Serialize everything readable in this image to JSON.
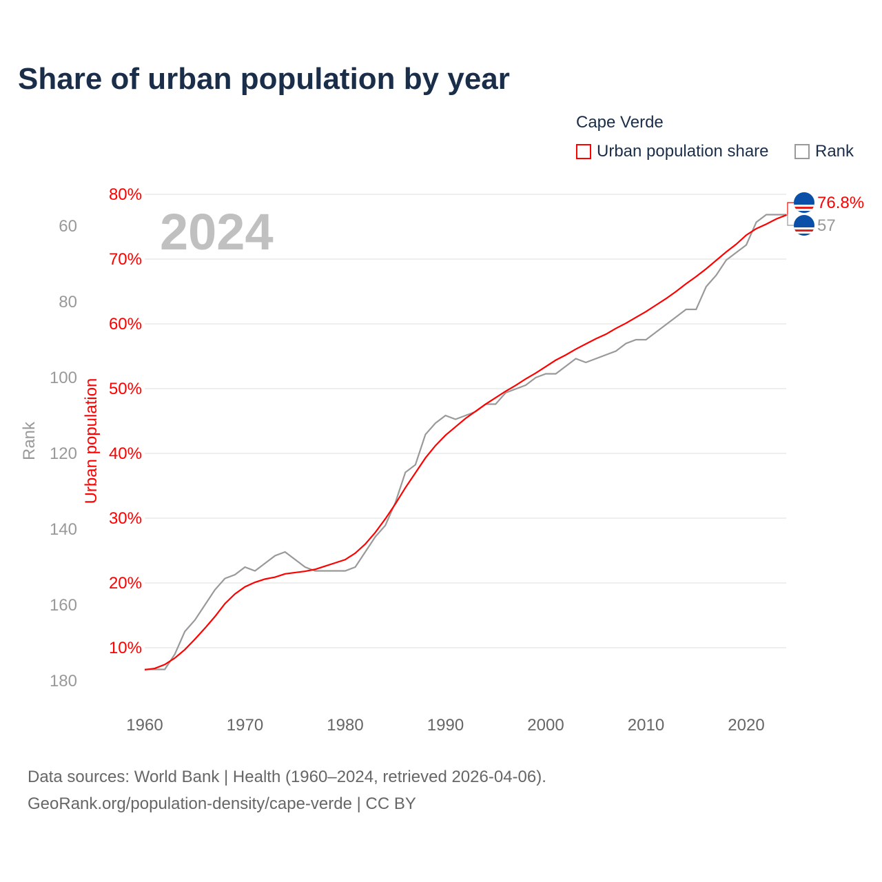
{
  "title": "Share of urban population by year",
  "legend": {
    "title": "Cape Verde",
    "urban_label": "Urban population share",
    "rank_label": "Rank"
  },
  "watermark_year": "2024",
  "footer": {
    "line1": "Data sources: World Bank | Health (1960–2024, retrieved 2026-04-06).",
    "line2": "GeoRank.org/population-density/cape-verde | CC BY"
  },
  "chart_data": {
    "type": "line",
    "title": "Share of urban population by year",
    "xlabel": "",
    "ylabel_left": "Urban population",
    "ylabel_rank": "Rank",
    "xlim": [
      1960,
      2024
    ],
    "ylim_urban": [
      0,
      80
    ],
    "ylim_rank": [
      197,
      52
    ],
    "x_ticks": [
      1960,
      1970,
      1980,
      1990,
      2000,
      2010,
      2020
    ],
    "urban_ticks": [
      10,
      20,
      30,
      40,
      50,
      60,
      70,
      80
    ],
    "urban_tick_labels": [
      "10%",
      "20%",
      "30%",
      "40%",
      "50%",
      "60%",
      "70%",
      "80%"
    ],
    "rank_ticks": [
      60,
      80,
      100,
      120,
      140,
      160,
      180
    ],
    "grid": true,
    "legend_position": "top-right",
    "colors": {
      "urban": "#ff0000",
      "rank": "#999999",
      "flag_blue": "#0a50a8"
    },
    "end_labels": {
      "urban": "76.8%",
      "rank": "57"
    },
    "x": [
      1960,
      1961,
      1962,
      1963,
      1964,
      1965,
      1966,
      1967,
      1968,
      1969,
      1970,
      1971,
      1972,
      1973,
      1974,
      1975,
      1976,
      1977,
      1978,
      1979,
      1980,
      1981,
      1982,
      1983,
      1984,
      1985,
      1986,
      1987,
      1988,
      1989,
      1990,
      1991,
      1992,
      1993,
      1994,
      1995,
      1996,
      1997,
      1998,
      1999,
      2000,
      2001,
      2002,
      2003,
      2004,
      2005,
      2006,
      2007,
      2008,
      2009,
      2010,
      2011,
      2012,
      2013,
      2014,
      2015,
      2016,
      2017,
      2018,
      2019,
      2020,
      2021,
      2022,
      2023,
      2024
    ],
    "series": [
      {
        "name": "Urban population share",
        "axis": "left",
        "values": [
          6.6,
          6.8,
          7.4,
          8.4,
          9.7,
          11.3,
          13.0,
          14.8,
          16.8,
          18.3,
          19.4,
          20.1,
          20.6,
          20.9,
          21.4,
          21.6,
          21.8,
          22.1,
          22.6,
          23.1,
          23.6,
          24.6,
          26.0,
          27.8,
          29.9,
          32.2,
          34.7,
          37.0,
          39.3,
          41.2,
          42.8,
          44.1,
          45.4,
          46.5,
          47.6,
          48.6,
          49.6,
          50.5,
          51.5,
          52.4,
          53.4,
          54.4,
          55.2,
          56.1,
          56.9,
          57.7,
          58.4,
          59.3,
          60.1,
          61.0,
          61.9,
          62.9,
          63.9,
          65.0,
          66.2,
          67.3,
          68.5,
          69.8,
          71.1,
          72.3,
          73.7,
          74.7,
          75.4,
          76.2,
          76.8
        ]
      },
      {
        "name": "Rank",
        "axis": "rank",
        "values": [
          177,
          177,
          177,
          173,
          167,
          164,
          160,
          156,
          153,
          152,
          150,
          151,
          149,
          147,
          146,
          148,
          150,
          151,
          151,
          151,
          151,
          150,
          146,
          142,
          139,
          133,
          125,
          123,
          115,
          112,
          110,
          111,
          110,
          109,
          107,
          107,
          104,
          103,
          102,
          100,
          99,
          99,
          97,
          95,
          96,
          95,
          94,
          93,
          91,
          90,
          90,
          88,
          86,
          84,
          82,
          82,
          76,
          73,
          69,
          67,
          65,
          59,
          57,
          57,
          57
        ]
      }
    ]
  }
}
